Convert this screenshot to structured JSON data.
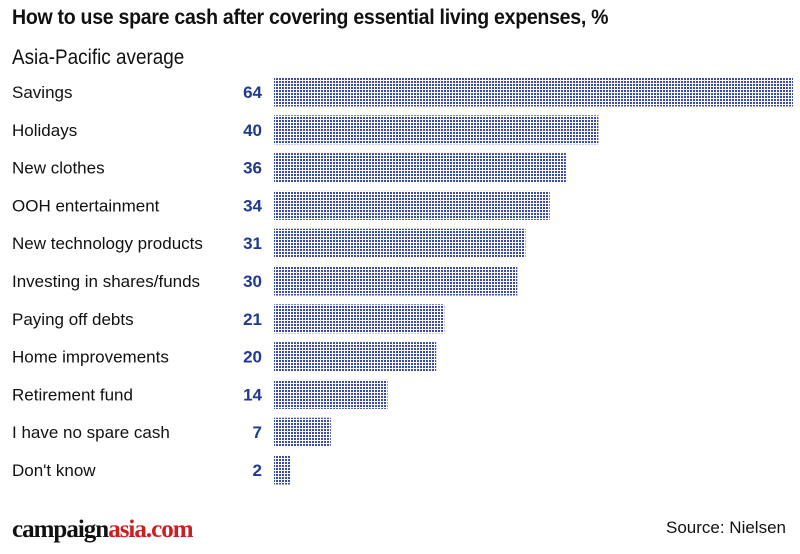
{
  "chart_data": {
    "type": "bar",
    "orientation": "horizontal",
    "title": "How to use spare cash after covering essential living expenses, %",
    "subtitle": "Asia-Pacific average",
    "categories": [
      "Savings",
      "Holidays",
      "New clothes",
      "OOH entertainment",
      "New technology products",
      "Investing in shares/funds",
      "Paying off debts",
      "Home improvements",
      "Retirement fund",
      "I have no spare cash",
      "Don't know"
    ],
    "values": [
      64,
      40,
      36,
      34,
      31,
      30,
      21,
      20,
      14,
      7,
      2
    ],
    "xlim": [
      0,
      64
    ],
    "bar_color": "#3b4aa3",
    "value_color": "#1f3a8f"
  },
  "footer": {
    "logo_part1": "campaign",
    "logo_part2": "asia.com",
    "source": "Source: Nielsen"
  }
}
